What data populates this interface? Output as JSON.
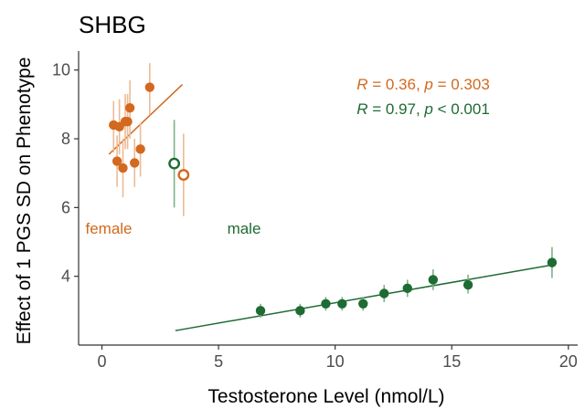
{
  "colors": {
    "female": "#D2691E",
    "male": "#1E6B33",
    "female_err": "#EDBB95",
    "male_err": "#7FB08C",
    "axis": "#333333"
  },
  "chart_data": {
    "type": "scatter",
    "title": "SHBG",
    "xlabel": "Testosterone Level (nmol/L)",
    "ylabel": "Effect of 1 PGS SD on Phenotype",
    "xlim": [
      -1,
      20.4
    ],
    "ylim": [
      2.0,
      10.55
    ],
    "xticks": [
      0,
      5,
      10,
      15,
      20
    ],
    "yticks": [
      4,
      6,
      8,
      10
    ],
    "grid": false,
    "series": [
      {
        "name": "female",
        "points": [
          {
            "x": 0.5,
            "y": 8.4,
            "lo": 7.6,
            "hi": 9.1
          },
          {
            "x": 0.65,
            "y": 7.35,
            "lo": 6.6,
            "hi": 8.1
          },
          {
            "x": 0.75,
            "y": 8.35,
            "lo": 7.55,
            "hi": 9.15
          },
          {
            "x": 0.9,
            "y": 7.15,
            "lo": 6.3,
            "hi": 8.0
          },
          {
            "x": 1.0,
            "y": 8.5,
            "lo": 7.7,
            "hi": 9.3
          },
          {
            "x": 1.1,
            "y": 8.5,
            "lo": 7.7,
            "hi": 9.3
          },
          {
            "x": 1.2,
            "y": 8.9,
            "lo": 8.0,
            "hi": 9.7
          },
          {
            "x": 1.4,
            "y": 7.3,
            "lo": 6.6,
            "hi": 8.0
          },
          {
            "x": 1.65,
            "y": 7.7,
            "lo": 6.9,
            "hi": 8.45
          },
          {
            "x": 2.05,
            "y": 9.5,
            "lo": 8.7,
            "hi": 10.2
          }
        ],
        "fit": {
          "x": [
            0.3,
            3.45
          ],
          "y": [
            7.55,
            9.58
          ]
        },
        "summary_point": {
          "x": 3.5,
          "y": 6.95,
          "lo": 5.75,
          "hi": 8.15
        }
      },
      {
        "name": "male",
        "points": [
          {
            "x": 6.8,
            "y": 3.0,
            "lo": 2.8,
            "hi": 3.2
          },
          {
            "x": 8.5,
            "y": 3.0,
            "lo": 2.8,
            "hi": 3.2
          },
          {
            "x": 9.6,
            "y": 3.2,
            "lo": 3.0,
            "hi": 3.4
          },
          {
            "x": 10.3,
            "y": 3.2,
            "lo": 3.0,
            "hi": 3.4
          },
          {
            "x": 11.2,
            "y": 3.2,
            "lo": 3.0,
            "hi": 3.4
          },
          {
            "x": 12.1,
            "y": 3.5,
            "lo": 3.25,
            "hi": 3.75
          },
          {
            "x": 13.1,
            "y": 3.65,
            "lo": 3.4,
            "hi": 3.9
          },
          {
            "x": 14.2,
            "y": 3.9,
            "lo": 3.6,
            "hi": 4.2
          },
          {
            "x": 15.7,
            "y": 3.75,
            "lo": 3.5,
            "hi": 4.05
          },
          {
            "x": 19.3,
            "y": 4.4,
            "lo": 3.95,
            "hi": 4.85
          }
        ],
        "fit": {
          "x": [
            3.15,
            19.3
          ],
          "y": [
            2.42,
            4.33
          ]
        },
        "summary_point": {
          "x": 3.1,
          "y": 7.28,
          "lo": 6.0,
          "hi": 8.55
        }
      }
    ],
    "annotations": {
      "female_stats": {
        "R": "0.36",
        "p": "= 0.303"
      },
      "male_stats": {
        "R": "0.97",
        "p": "< 0.001"
      },
      "female_label": "female",
      "male_label": "male"
    }
  }
}
